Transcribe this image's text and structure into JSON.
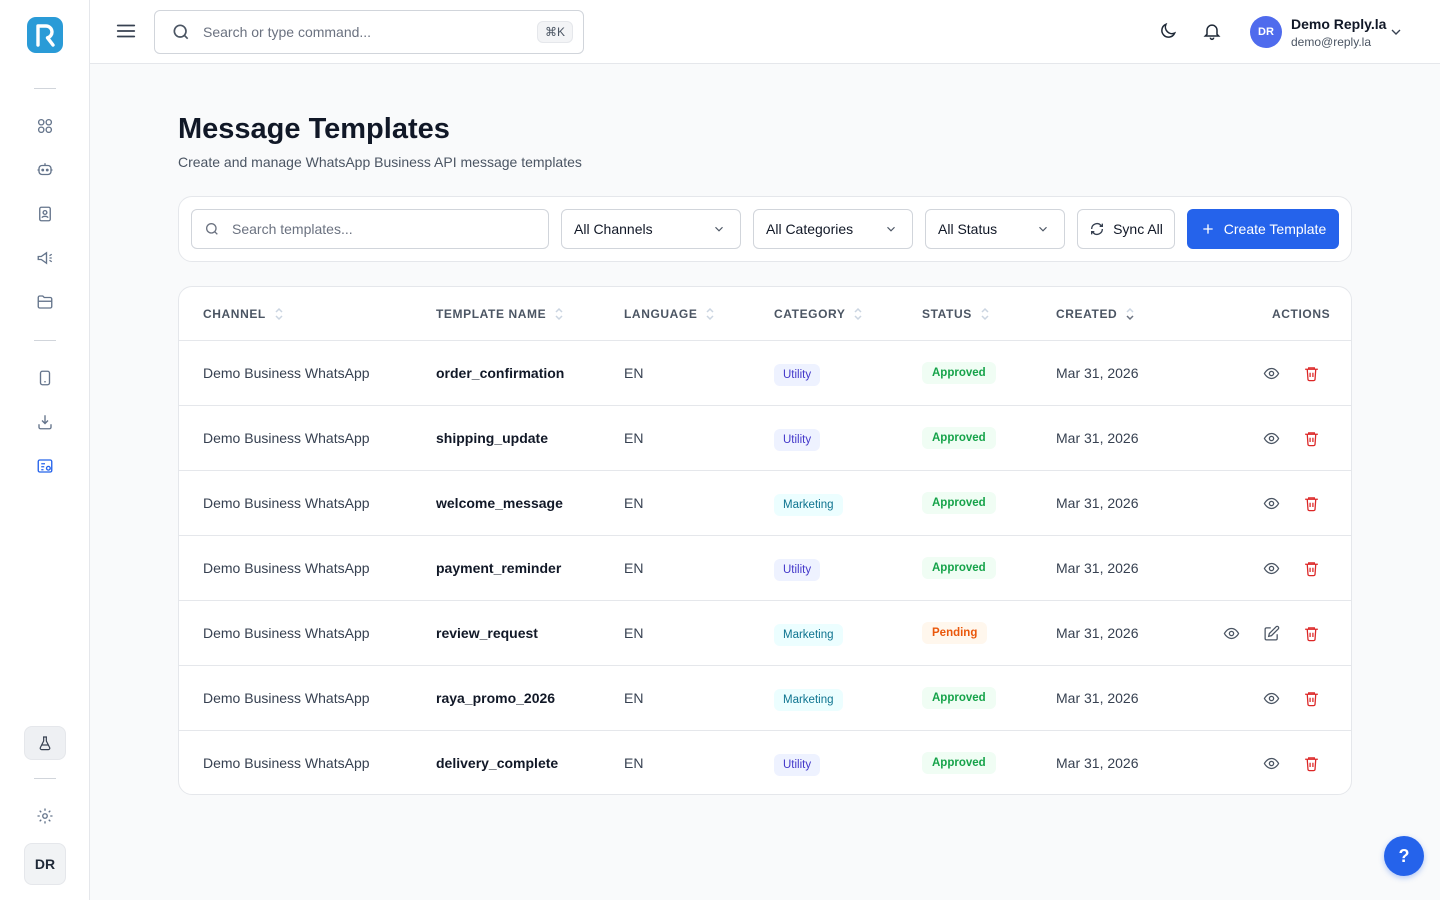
{
  "topbar": {
    "search_placeholder": "Search or type command...",
    "shortcut": "⌘K",
    "user_initials": "DR",
    "user_name": "Demo Reply.la",
    "user_email": "demo@reply.la"
  },
  "sidebar": {
    "avatar_initials": "DR",
    "icons": [
      "dashboard-icon",
      "chatbot-icon",
      "contacts-icon",
      "campaigns-icon",
      "folder-icon",
      "device-icon",
      "download-icon",
      "templates-icon",
      "flask-icon",
      "settings-icon"
    ]
  },
  "page": {
    "title": "Message Templates",
    "subtitle": "Create and manage WhatsApp Business API message templates"
  },
  "filters": {
    "search_placeholder": "Search templates...",
    "channel": "All Channels",
    "category": "All Categories",
    "status": "All Status",
    "sync_label": "Sync All",
    "create_label": "Create Template"
  },
  "table": {
    "columns": [
      "CHANNEL",
      "TEMPLATE NAME",
      "LANGUAGE",
      "CATEGORY",
      "STATUS",
      "CREATED",
      "ACTIONS"
    ],
    "rows": [
      {
        "channel": "Demo Business WhatsApp",
        "name": "order_confirmation",
        "language": "EN",
        "category": "Utility",
        "status": "Approved",
        "created": "Mar 31, 2026"
      },
      {
        "channel": "Demo Business WhatsApp",
        "name": "shipping_update",
        "language": "EN",
        "category": "Utility",
        "status": "Approved",
        "created": "Mar 31, 2026"
      },
      {
        "channel": "Demo Business WhatsApp",
        "name": "welcome_message",
        "language": "EN",
        "category": "Marketing",
        "status": "Approved",
        "created": "Mar 31, 2026"
      },
      {
        "channel": "Demo Business WhatsApp",
        "name": "payment_reminder",
        "language": "EN",
        "category": "Utility",
        "status": "Approved",
        "created": "Mar 31, 2026"
      },
      {
        "channel": "Demo Business WhatsApp",
        "name": "review_request",
        "language": "EN",
        "category": "Marketing",
        "status": "Pending",
        "created": "Mar 31, 2026"
      },
      {
        "channel": "Demo Business WhatsApp",
        "name": "raya_promo_2026",
        "language": "EN",
        "category": "Marketing",
        "status": "Approved",
        "created": "Mar 31, 2026"
      },
      {
        "channel": "Demo Business WhatsApp",
        "name": "delivery_complete",
        "language": "EN",
        "category": "Utility",
        "status": "Approved",
        "created": "Mar 31, 2026"
      }
    ]
  },
  "help_label": "?",
  "colors": {
    "primary": "#2563eb",
    "approved": "#16a34a",
    "pending": "#ea580c",
    "delete": "#dc2626"
  }
}
